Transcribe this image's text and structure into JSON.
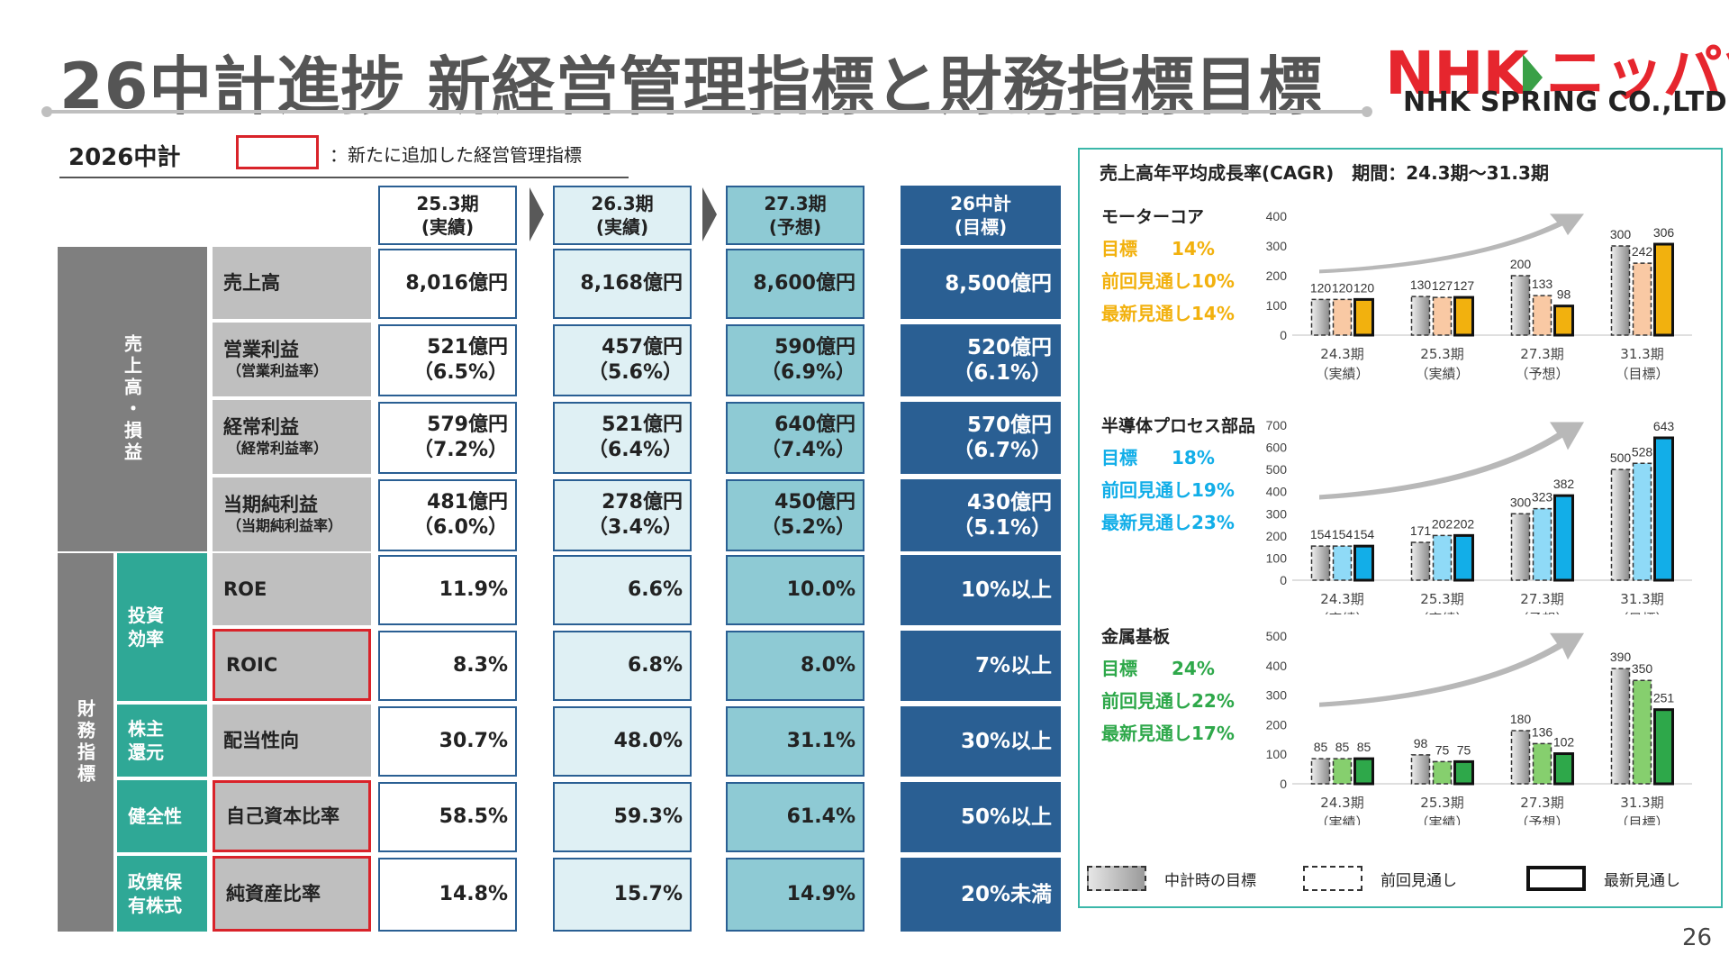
{
  "header": {
    "title": "26中計進捗 新経営管理指標と財務指標目標",
    "logo_main_left": "NHK",
    "logo_main_right": "ニッパツ",
    "logo_sub": "NHK SPRING CO.,LTD."
  },
  "plan_label": "2026中計",
  "legend_note": "：新たに追加した経営管理指標",
  "columns": [
    {
      "line1": "25.3期",
      "line2": "(実績)"
    },
    {
      "line1": "26.3期",
      "line2": "(実績)"
    },
    {
      "line1": "27.3期",
      "line2": "(予想)"
    },
    {
      "line1": "26中計",
      "line2": "(目標)"
    }
  ],
  "groups": {
    "pl": "売上高・損益",
    "fin": "財務指標"
  },
  "categories": {
    "invest": "投資\n効率",
    "share": "株主\n還元",
    "health": "健全性",
    "policy": "政策保\n有株式"
  },
  "rows": [
    {
      "label": "売上高",
      "sub": "",
      "vals": [
        [
          "8,016億円",
          ""
        ],
        [
          "8,168億円",
          ""
        ],
        [
          "8,600億円",
          ""
        ],
        [
          "8,500億円",
          ""
        ]
      ]
    },
    {
      "label": "営業利益",
      "sub": "（営業利益率）",
      "vals": [
        [
          "521億円",
          "（6.5%）"
        ],
        [
          "457億円",
          "（5.6%）"
        ],
        [
          "590億円",
          "（6.9%）"
        ],
        [
          "520億円",
          "（6.1%）"
        ]
      ]
    },
    {
      "label": "経常利益",
      "sub": "（経常利益率）",
      "vals": [
        [
          "579億円",
          "（7.2%）"
        ],
        [
          "521億円",
          "（6.4%）"
        ],
        [
          "640億円",
          "（7.4%）"
        ],
        [
          "570億円",
          "（6.7%）"
        ]
      ]
    },
    {
      "label": "当期純利益",
      "sub": "（当期純利益率）",
      "vals": [
        [
          "481億円",
          "（6.0%）"
        ],
        [
          "278億円",
          "（3.4%）"
        ],
        [
          "450億円",
          "（5.2%）"
        ],
        [
          "430億円",
          "（5.1%）"
        ]
      ]
    },
    {
      "label": "ROE",
      "sub": "",
      "vals": [
        [
          "11.9%",
          ""
        ],
        [
          "6.6%",
          ""
        ],
        [
          "10.0%",
          ""
        ],
        [
          "10%以上",
          ""
        ]
      ]
    },
    {
      "label": "ROIC",
      "sub": "",
      "vals": [
        [
          "8.3%",
          ""
        ],
        [
          "6.8%",
          ""
        ],
        [
          "8.0%",
          ""
        ],
        [
          "7%以上",
          ""
        ]
      ]
    },
    {
      "label": "配当性向",
      "sub": "",
      "vals": [
        [
          "30.7%",
          ""
        ],
        [
          "48.0%",
          ""
        ],
        [
          "31.1%",
          ""
        ],
        [
          "30%以上",
          ""
        ]
      ]
    },
    {
      "label": "自己資本比率",
      "sub": "",
      "vals": [
        [
          "58.5%",
          ""
        ],
        [
          "59.3%",
          ""
        ],
        [
          "61.4%",
          ""
        ],
        [
          "50%以上",
          ""
        ]
      ]
    },
    {
      "label": "純資産比率",
      "sub": "",
      "vals": [
        [
          "14.8%",
          ""
        ],
        [
          "15.7%",
          ""
        ],
        [
          "14.9%",
          ""
        ],
        [
          "20%未満",
          ""
        ]
      ]
    }
  ],
  "panel": {
    "title": "売上高年平均成長率(CAGR)　期間：24.3期～31.3期",
    "legend": [
      "中計時の目標",
      "前回見通し",
      "最新見通し"
    ],
    "x_labels": [
      [
        "24.3期",
        "（実績）"
      ],
      [
        "25.3期",
        "（実績）"
      ],
      [
        "27.3期",
        "（予想）"
      ],
      [
        "31.3期",
        "（目標）"
      ]
    ]
  },
  "chart_data": [
    {
      "type": "bar",
      "title": "モーターコア",
      "target_label": "目標",
      "target": "14%",
      "prev_label": "前回見通し",
      "prev": "10%",
      "latest_label": "最新見通し",
      "latest": "14%",
      "color": "#f2b10e",
      "light_color": "#f9c9a4",
      "categories": [
        "24.3期",
        "25.3期",
        "27.3期",
        "31.3期"
      ],
      "ylim": [
        0,
        400
      ],
      "yticks": [
        0,
        100,
        200,
        300,
        400
      ],
      "series": [
        {
          "name": "中計時の目標",
          "values": [
            120,
            130,
            200,
            300
          ]
        },
        {
          "name": "前回見通し",
          "values": [
            120,
            127,
            133,
            242
          ]
        },
        {
          "name": "最新見通し",
          "values": [
            120,
            127,
            98,
            306
          ]
        }
      ]
    },
    {
      "type": "bar",
      "title": "半導体プロセス部品",
      "target_label": "目標",
      "target": "18%",
      "prev_label": "前回見通し",
      "prev": "19%",
      "latest_label": "最新見通し",
      "latest": "23%",
      "color": "#12aee8",
      "light_color": "#8fdaf7",
      "categories": [
        "24.3期",
        "25.3期",
        "27.3期",
        "31.3期"
      ],
      "ylim": [
        0,
        700
      ],
      "yticks": [
        0,
        100,
        200,
        300,
        400,
        500,
        600,
        700
      ],
      "series": [
        {
          "name": "中計時の目標",
          "values": [
            154,
            171,
            300,
            500
          ]
        },
        {
          "name": "前回見通し",
          "values": [
            154,
            202,
            323,
            528
          ]
        },
        {
          "name": "最新見通し",
          "values": [
            154,
            202,
            382,
            643
          ]
        }
      ]
    },
    {
      "type": "bar",
      "title": "金属基板",
      "target_label": "目標",
      "target": "24%",
      "prev_label": "前回見通し",
      "prev": "22%",
      "latest_label": "最新見通し",
      "latest": "17%",
      "color": "#2ea84a",
      "light_color": "#86cf6e",
      "categories": [
        "24.3期",
        "25.3期",
        "27.3期",
        "31.3期"
      ],
      "ylim": [
        0,
        500
      ],
      "yticks": [
        0,
        100,
        200,
        300,
        400,
        500
      ],
      "series": [
        {
          "name": "中計時の目標",
          "values": [
            85,
            98,
            180,
            390
          ]
        },
        {
          "name": "前回見通し",
          "values": [
            85,
            75,
            136,
            350
          ]
        },
        {
          "name": "最新見通し",
          "values": [
            85,
            75,
            102,
            251
          ]
        }
      ]
    }
  ],
  "page_number": "26"
}
